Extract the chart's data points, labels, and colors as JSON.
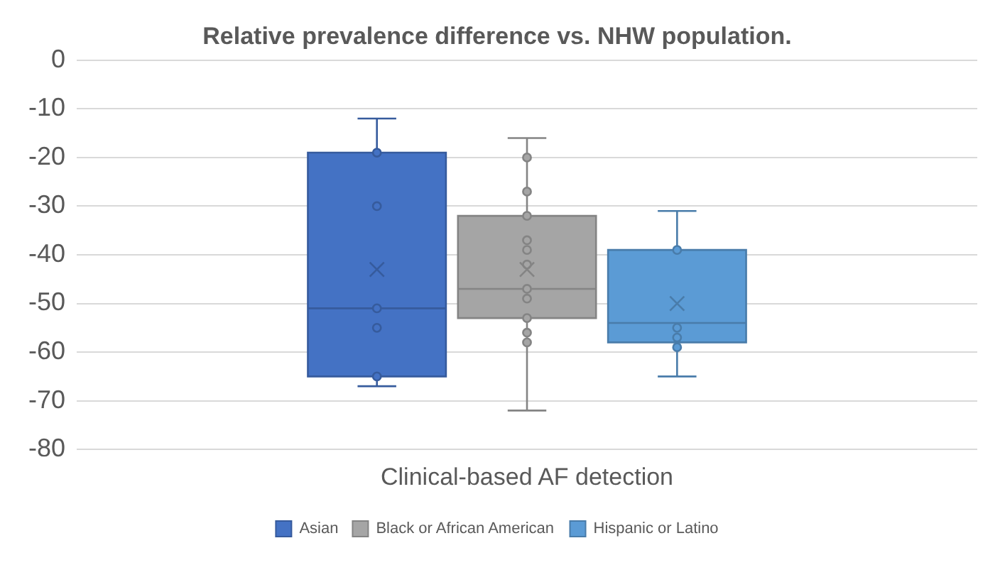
{
  "chart_data": {
    "type": "box",
    "title": "Relative prevalence difference vs. NHW population.",
    "categories": [
      "Clinical-based AF detection"
    ],
    "series": [
      {
        "name": "Asian",
        "color": "#4472c4",
        "boxes": [
          {
            "low": -67,
            "q1": -65,
            "median": -51,
            "q3": -19,
            "high": -12,
            "mean": -43,
            "outliers": [
              -19,
              -30,
              -51,
              -55,
              -65
            ]
          }
        ]
      },
      {
        "name": "Black or African American",
        "color": "#a5a5a5",
        "boxes": [
          {
            "low": -72,
            "q1": -53,
            "median": -47,
            "q3": -32,
            "high": -16,
            "mean": -43,
            "outliers": [
              -20,
              -27,
              -32,
              -37,
              -39,
              -42,
              -47,
              -49,
              -53,
              -56,
              -58
            ]
          }
        ]
      },
      {
        "name": "Hispanic or Latino",
        "color": "#5b9bd5",
        "boxes": [
          {
            "low": -65,
            "q1": -58,
            "median": -54,
            "q3": -39,
            "high": -31,
            "mean": -50,
            "outliers": [
              -39,
              -55,
              -57,
              -59
            ]
          }
        ]
      }
    ],
    "ylim": [
      -80,
      0
    ],
    "yticks": [
      -80,
      -70,
      -60,
      -50,
      -40,
      -30,
      -20,
      -10,
      0
    ],
    "grid": "y",
    "legend": "bottom"
  }
}
